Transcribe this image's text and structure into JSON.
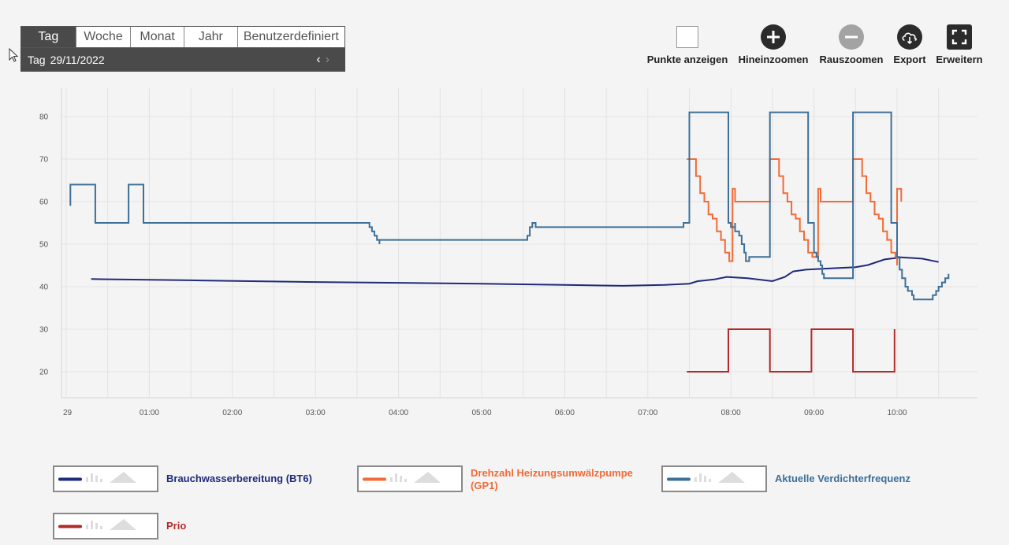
{
  "period": {
    "tabs": [
      "Tag",
      "Woche",
      "Monat",
      "Jahr",
      "Benutzerdefiniert"
    ],
    "active": 0,
    "date_prefix": "Tag",
    "date_value": "29/11/2022"
  },
  "toolbar": {
    "points_label": "Punkte anzeigen",
    "zoom_in_label": "Hineinzoomen",
    "zoom_out_label": "Rauszoomen",
    "export_label": "Export",
    "expand_label": "Erweitern"
  },
  "colors": {
    "bt6": "#1f2a7a",
    "gp1": "#f26a36",
    "freq": "#3d6f97",
    "prio": "#b22a2a",
    "grid": "#e3e3e3"
  },
  "legend": [
    {
      "label": "Brauchwasserbereitung (BT6)",
      "color": "#1f2a7a"
    },
    {
      "label": "Drehzahl Heizungsumwälzpumpe (GP1)",
      "color": "#f26a36"
    },
    {
      "label": "Aktuelle Verdichterfrequenz",
      "color": "#3d6f97"
    },
    {
      "label": "Prio",
      "color": "#b22a2a"
    }
  ],
  "chart_data": {
    "type": "line",
    "x_unit": "hours since 00:00 on 29/11/2022",
    "x_ticks": [
      "29",
      "01:00",
      "02:00",
      "03:00",
      "04:00",
      "05:00",
      "06:00",
      "07:00",
      "08:00",
      "09:00",
      "10:00"
    ],
    "y_ticks": [
      20,
      30,
      40,
      50,
      60,
      70,
      80
    ],
    "xlim": [
      -0.05,
      10.95
    ],
    "ylim": [
      14,
      84
    ],
    "grid": true,
    "legend_position": "bottom",
    "series": [
      {
        "name": "Brauchwasserbereitung (BT6)",
        "color": "#1f2a7a",
        "step": false,
        "points": [
          [
            0.3,
            41.8
          ],
          [
            1.5,
            41.5
          ],
          [
            3,
            41.1
          ],
          [
            4,
            40.9
          ],
          [
            5,
            40.7
          ],
          [
            6,
            40.4
          ],
          [
            6.7,
            40.2
          ],
          [
            7.2,
            40.4
          ],
          [
            7.5,
            40.7
          ],
          [
            7.6,
            41.3
          ],
          [
            7.8,
            41.7
          ],
          [
            7.95,
            42.3
          ],
          [
            8.2,
            42
          ],
          [
            8.5,
            41.3
          ],
          [
            8.65,
            42.3
          ],
          [
            8.75,
            43.6
          ],
          [
            8.9,
            44
          ],
          [
            9.2,
            44.3
          ],
          [
            9.5,
            44.6
          ],
          [
            9.65,
            45.1
          ],
          [
            9.85,
            46.4
          ],
          [
            10.05,
            46.9
          ],
          [
            10.3,
            46.6
          ],
          [
            10.5,
            45.8
          ]
        ]
      },
      {
        "name": "Drehzahl Heizungsumwälzpumpe (GP1)",
        "color": "#f26a36",
        "step": true,
        "points": [
          [
            7.47,
            70
          ],
          [
            7.53,
            70
          ],
          [
            7.58,
            66
          ],
          [
            7.63,
            62
          ],
          [
            7.68,
            60
          ],
          [
            7.73,
            57
          ],
          [
            7.78,
            56
          ],
          [
            7.83,
            53
          ],
          [
            7.88,
            51
          ],
          [
            7.93,
            48
          ],
          [
            7.98,
            46
          ],
          [
            8.02,
            46
          ],
          [
            8.02,
            63
          ],
          [
            8.05,
            60
          ],
          [
            8.47,
            60
          ],
          [
            8.47,
            70
          ],
          [
            8.53,
            70
          ],
          [
            8.58,
            66
          ],
          [
            8.63,
            62
          ],
          [
            8.68,
            60
          ],
          [
            8.73,
            57
          ],
          [
            8.78,
            56
          ],
          [
            8.83,
            53
          ],
          [
            8.88,
            51
          ],
          [
            8.93,
            48
          ],
          [
            8.98,
            47
          ],
          [
            9.05,
            47
          ],
          [
            9.05,
            63
          ],
          [
            9.08,
            60
          ],
          [
            9.47,
            60
          ],
          [
            9.47,
            70
          ],
          [
            9.53,
            70
          ],
          [
            9.58,
            66
          ],
          [
            9.63,
            62
          ],
          [
            9.68,
            60
          ],
          [
            9.73,
            57
          ],
          [
            9.78,
            56
          ],
          [
            9.83,
            53
          ],
          [
            9.88,
            51
          ],
          [
            9.93,
            48
          ],
          [
            9.98,
            47
          ],
          [
            10.0,
            45
          ],
          [
            10.0,
            63
          ],
          [
            10.05,
            60
          ]
        ]
      },
      {
        "name": "Aktuelle Verdichterfrequenz",
        "color": "#3d6f97",
        "step": true,
        "points": [
          [
            0.05,
            59
          ],
          [
            0.05,
            64
          ],
          [
            0.35,
            64
          ],
          [
            0.35,
            55
          ],
          [
            0.75,
            55
          ],
          [
            0.75,
            64
          ],
          [
            0.93,
            64
          ],
          [
            0.93,
            55
          ],
          [
            3.6,
            55
          ],
          [
            3.65,
            54
          ],
          [
            3.68,
            53
          ],
          [
            3.71,
            52
          ],
          [
            3.74,
            51
          ],
          [
            3.77,
            50
          ],
          [
            3.77,
            51
          ],
          [
            5.5,
            51
          ],
          [
            5.55,
            52
          ],
          [
            5.58,
            54
          ],
          [
            5.61,
            55
          ],
          [
            5.65,
            54
          ],
          [
            7.43,
            54
          ],
          [
            7.43,
            55
          ],
          [
            7.5,
            55
          ],
          [
            7.5,
            81
          ],
          [
            7.97,
            81
          ],
          [
            7.97,
            55
          ],
          [
            8.0,
            54
          ],
          [
            8.05,
            55
          ],
          [
            8.05,
            53
          ],
          [
            8.1,
            52
          ],
          [
            8.13,
            50
          ],
          [
            8.16,
            48
          ],
          [
            8.18,
            47
          ],
          [
            8.18,
            46
          ],
          [
            8.22,
            46
          ],
          [
            8.22,
            47
          ],
          [
            8.47,
            47
          ],
          [
            8.47,
            81
          ],
          [
            8.93,
            81
          ],
          [
            8.93,
            55
          ],
          [
            8.97,
            55
          ],
          [
            9.0,
            54
          ],
          [
            9.0,
            48
          ],
          [
            9.03,
            47
          ],
          [
            9.05,
            46
          ],
          [
            9.08,
            45
          ],
          [
            9.1,
            43
          ],
          [
            9.12,
            42
          ],
          [
            9.47,
            42
          ],
          [
            9.47,
            81
          ],
          [
            9.93,
            81
          ],
          [
            9.93,
            55
          ],
          [
            10.0,
            55
          ],
          [
            10.0,
            47
          ],
          [
            10.03,
            44
          ],
          [
            10.06,
            42
          ],
          [
            10.1,
            40
          ],
          [
            10.13,
            39
          ],
          [
            10.18,
            38
          ],
          [
            10.2,
            37
          ],
          [
            10.4,
            37
          ],
          [
            10.43,
            38
          ],
          [
            10.47,
            39
          ],
          [
            10.5,
            40
          ],
          [
            10.54,
            41
          ],
          [
            10.58,
            42
          ],
          [
            10.62,
            43
          ]
        ]
      },
      {
        "name": "Prio",
        "color": "#b22a2a",
        "step": true,
        "points": [
          [
            7.47,
            20
          ],
          [
            7.97,
            20
          ],
          [
            7.97,
            30
          ],
          [
            8.47,
            30
          ],
          [
            8.47,
            20
          ],
          [
            8.97,
            20
          ],
          [
            8.97,
            30
          ],
          [
            9.47,
            30
          ],
          [
            9.47,
            20
          ],
          [
            9.97,
            20
          ],
          [
            9.97,
            30
          ]
        ]
      }
    ]
  }
}
